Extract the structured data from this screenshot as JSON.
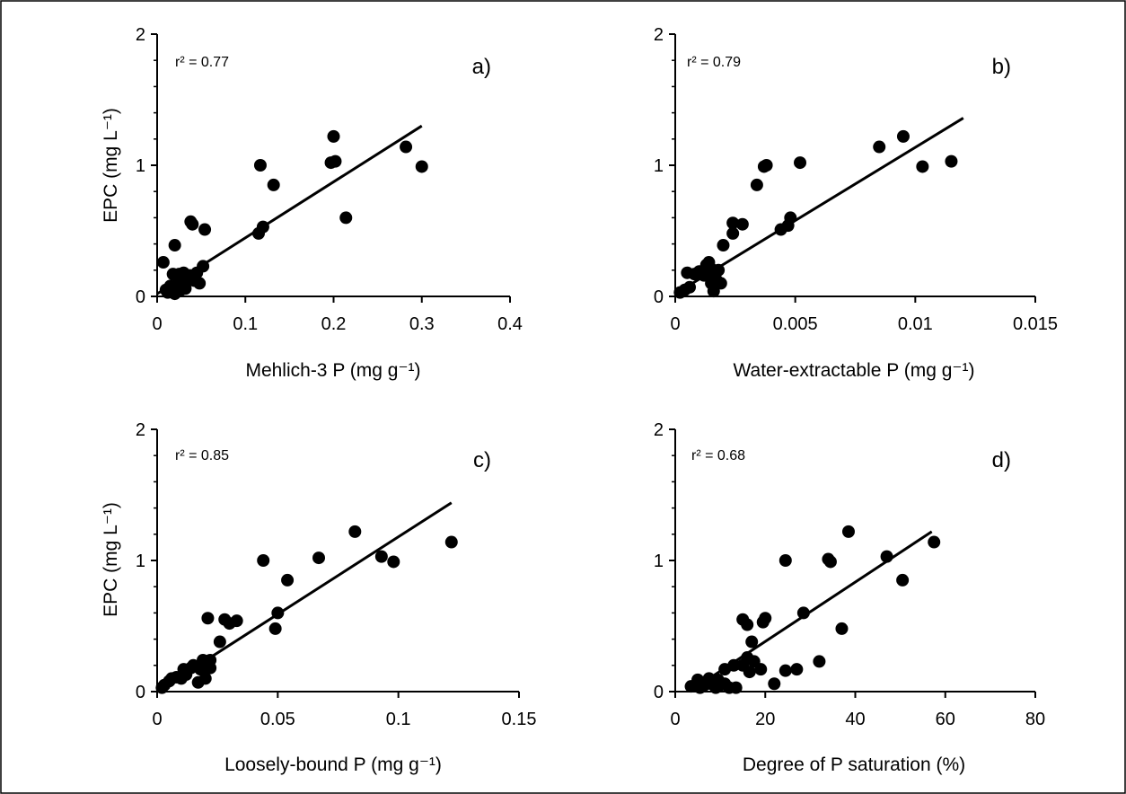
{
  "chart_data": [
    {
      "type": "scatter",
      "panel_label": "a)",
      "annotation": "r² = 0.77",
      "xlabel": "Mehlich-3 P (mg g⁻¹)",
      "ylabel": "EPC (mg L⁻¹)",
      "xlim": [
        0,
        0.4
      ],
      "ylim": [
        0,
        2
      ],
      "xticks": [
        0,
        0.1,
        0.2,
        0.3,
        0.4
      ],
      "yticks": [
        0,
        1,
        2
      ],
      "xtick_labels": [
        "0",
        "0.1",
        "0.2",
        "0.3",
        "0.4"
      ],
      "ytick_labels": [
        "0",
        "1",
        "2"
      ],
      "trendline": [
        [
          0.0,
          0.02
        ],
        [
          0.3,
          1.3
        ]
      ],
      "points": [
        [
          0.007,
          0.26
        ],
        [
          0.01,
          0.05
        ],
        [
          0.012,
          0.03
        ],
        [
          0.015,
          0.08
        ],
        [
          0.018,
          0.17
        ],
        [
          0.02,
          0.39
        ],
        [
          0.02,
          0.02
        ],
        [
          0.022,
          0.07
        ],
        [
          0.025,
          0.12
        ],
        [
          0.025,
          0.17
        ],
        [
          0.027,
          0.05
        ],
        [
          0.03,
          0.1
        ],
        [
          0.03,
          0.18
        ],
        [
          0.032,
          0.06
        ],
        [
          0.035,
          0.13
        ],
        [
          0.037,
          0.16
        ],
        [
          0.038,
          0.57
        ],
        [
          0.04,
          0.55
        ],
        [
          0.042,
          0.12
        ],
        [
          0.045,
          0.18
        ],
        [
          0.048,
          0.1
        ],
        [
          0.052,
          0.23
        ],
        [
          0.054,
          0.51
        ],
        [
          0.115,
          0.48
        ],
        [
          0.117,
          1.0
        ],
        [
          0.12,
          0.53
        ],
        [
          0.132,
          0.85
        ],
        [
          0.197,
          1.02
        ],
        [
          0.2,
          1.22
        ],
        [
          0.202,
          1.03
        ],
        [
          0.214,
          0.6
        ],
        [
          0.282,
          1.14
        ],
        [
          0.3,
          0.99
        ]
      ]
    },
    {
      "type": "scatter",
      "panel_label": "b)",
      "annotation": "r² = 0.79",
      "xlabel": "Water-extractable P (mg g⁻¹)",
      "ylabel": "",
      "xlim": [
        0,
        0.015
      ],
      "ylim": [
        0,
        2
      ],
      "xticks": [
        0,
        0.005,
        0.01,
        0.015
      ],
      "yticks": [
        0,
        1,
        2
      ],
      "xtick_labels": [
        "0",
        "0.005",
        "0.01",
        "0.015"
      ],
      "ytick_labels": [
        "0",
        "1",
        "2"
      ],
      "trendline": [
        [
          0.0,
          0.02
        ],
        [
          0.012,
          1.36
        ]
      ],
      "points": [
        [
          0.0002,
          0.03
        ],
        [
          0.0004,
          0.05
        ],
        [
          0.0005,
          0.18
        ],
        [
          0.0006,
          0.07
        ],
        [
          0.0008,
          0.17
        ],
        [
          0.001,
          0.19
        ],
        [
          0.0012,
          0.16
        ],
        [
          0.0013,
          0.24
        ],
        [
          0.0014,
          0.26
        ],
        [
          0.0015,
          0.21
        ],
        [
          0.0015,
          0.1
        ],
        [
          0.0016,
          0.04
        ],
        [
          0.0016,
          0.15
        ],
        [
          0.0017,
          0.13
        ],
        [
          0.0018,
          0.2
        ],
        [
          0.0019,
          0.1
        ],
        [
          0.002,
          0.39
        ],
        [
          0.0024,
          0.48
        ],
        [
          0.0024,
          0.56
        ],
        [
          0.0028,
          0.55
        ],
        [
          0.0034,
          0.85
        ],
        [
          0.0037,
          0.99
        ],
        [
          0.0038,
          1.0
        ],
        [
          0.0044,
          0.51
        ],
        [
          0.0047,
          0.54
        ],
        [
          0.0048,
          0.6
        ],
        [
          0.0052,
          1.02
        ],
        [
          0.0085,
          1.14
        ],
        [
          0.0095,
          1.22
        ],
        [
          0.0103,
          0.99
        ],
        [
          0.0115,
          1.03
        ]
      ]
    },
    {
      "type": "scatter",
      "panel_label": "c)",
      "annotation": "r² = 0.85",
      "xlabel": "Loosely-bound P (mg g⁻¹)",
      "ylabel": "EPC (mg L⁻¹)",
      "xlim": [
        0,
        0.15
      ],
      "ylim": [
        0,
        2
      ],
      "xticks": [
        0,
        0.05,
        0.1,
        0.15
      ],
      "yticks": [
        0,
        1,
        2
      ],
      "xtick_labels": [
        "0",
        "0.05",
        "0.1",
        "0.15"
      ],
      "ytick_labels": [
        "0",
        "1",
        "2"
      ],
      "trendline": [
        [
          0.0,
          0.0
        ],
        [
          0.122,
          1.44
        ]
      ],
      "points": [
        [
          0.002,
          0.03
        ],
        [
          0.003,
          0.05
        ],
        [
          0.005,
          0.08
        ],
        [
          0.006,
          0.1
        ],
        [
          0.008,
          0.11
        ],
        [
          0.01,
          0.1
        ],
        [
          0.011,
          0.17
        ],
        [
          0.012,
          0.13
        ],
        [
          0.014,
          0.18
        ],
        [
          0.015,
          0.2
        ],
        [
          0.017,
          0.07
        ],
        [
          0.018,
          0.17
        ],
        [
          0.019,
          0.24
        ],
        [
          0.02,
          0.1
        ],
        [
          0.021,
          0.56
        ],
        [
          0.021,
          0.2
        ],
        [
          0.022,
          0.24
        ],
        [
          0.022,
          0.18
        ],
        [
          0.026,
          0.38
        ],
        [
          0.028,
          0.55
        ],
        [
          0.03,
          0.52
        ],
        [
          0.033,
          0.54
        ],
        [
          0.044,
          1.0
        ],
        [
          0.049,
          0.48
        ],
        [
          0.05,
          0.6
        ],
        [
          0.054,
          0.85
        ],
        [
          0.067,
          1.02
        ],
        [
          0.082,
          1.22
        ],
        [
          0.093,
          1.03
        ],
        [
          0.098,
          0.99
        ],
        [
          0.122,
          1.14
        ]
      ]
    },
    {
      "type": "scatter",
      "panel_label": "d)",
      "annotation": "r² = 0.68",
      "xlabel": "Degree of P saturation (%)",
      "ylabel": "",
      "xlim": [
        0,
        80
      ],
      "ylim": [
        0,
        2
      ],
      "xticks": [
        0,
        20,
        40,
        60,
        80
      ],
      "yticks": [
        0,
        1,
        2
      ],
      "xtick_labels": [
        "0",
        "20",
        "40",
        "60",
        "80"
      ],
      "ytick_labels": [
        "0",
        "1",
        "2"
      ],
      "trendline": [
        [
          4,
          0.02
        ],
        [
          57,
          1.22
        ]
      ],
      "points": [
        [
          3.5,
          0.04
        ],
        [
          5,
          0.09
        ],
        [
          5.5,
          0.03
        ],
        [
          6.5,
          0.05
        ],
        [
          7.5,
          0.1
        ],
        [
          8,
          0.06
        ],
        [
          9,
          0.03
        ],
        [
          9.5,
          0.09
        ],
        [
          10,
          0.05
        ],
        [
          11,
          0.17
        ],
        [
          11,
          0.06
        ],
        [
          12,
          0.03
        ],
        [
          13,
          0.2
        ],
        [
          13.5,
          0.03
        ],
        [
          15,
          0.55
        ],
        [
          15,
          0.2
        ],
        [
          16,
          0.51
        ],
        [
          16,
          0.26
        ],
        [
          16.5,
          0.15
        ],
        [
          17,
          0.38
        ],
        [
          17.5,
          0.23
        ],
        [
          19,
          0.17
        ],
        [
          19.5,
          0.53
        ],
        [
          20,
          0.56
        ],
        [
          22,
          0.06
        ],
        [
          24.5,
          1.0
        ],
        [
          24.5,
          0.16
        ],
        [
          27,
          0.17
        ],
        [
          28.5,
          0.6
        ],
        [
          32,
          0.23
        ],
        [
          34,
          1.01
        ],
        [
          34.5,
          0.99
        ],
        [
          37,
          0.48
        ],
        [
          38.5,
          1.22
        ],
        [
          47,
          1.03
        ],
        [
          50.5,
          0.85
        ],
        [
          57.5,
          1.14
        ]
      ]
    }
  ]
}
